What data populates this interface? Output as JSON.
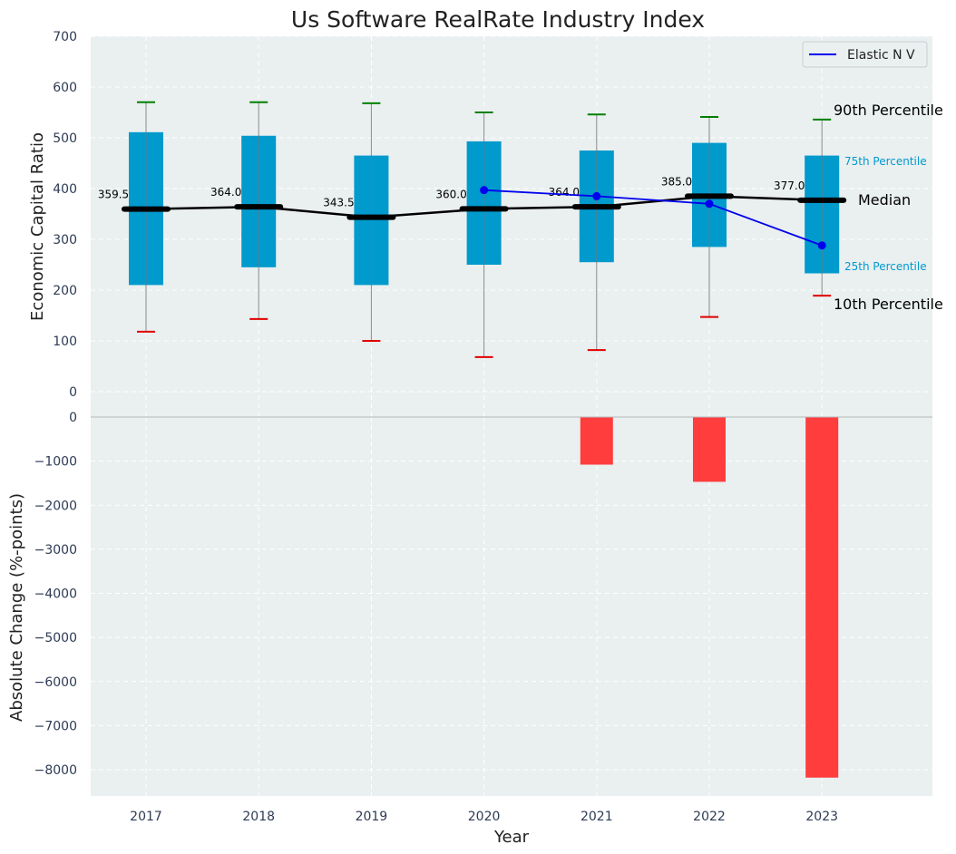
{
  "chart_data": [
    {
      "type": "box",
      "title": "Us Software RealRate Industry Index",
      "ylabel": "Economic Capital Ratio",
      "ylim": [
        0,
        700
      ],
      "yticks": [
        0,
        100,
        200,
        300,
        400,
        500,
        600,
        700
      ],
      "categories": [
        "2017",
        "2018",
        "2019",
        "2020",
        "2021",
        "2022",
        "2023"
      ],
      "p10": [
        118,
        143,
        100,
        68,
        82,
        147,
        189
      ],
      "p25": [
        210,
        245,
        210,
        250,
        255,
        285,
        233
      ],
      "median": [
        359.5,
        364.0,
        343.5,
        360.0,
        364.0,
        385.0,
        377.0
      ],
      "p75": [
        511,
        504,
        465,
        493,
        475,
        490,
        465
      ],
      "p90": [
        570,
        570,
        568,
        550,
        546,
        541,
        536
      ],
      "median_labels": [
        "359.5",
        "364.0",
        "343.5",
        "360.0",
        "364.0",
        "385.0",
        "377.0"
      ],
      "series": [
        {
          "name": "Elastic N V",
          "x": [
            "2020",
            "2021",
            "2022",
            "2023"
          ],
          "values": [
            397,
            385,
            370,
            288
          ]
        }
      ],
      "annotations": {
        "p90": "90th Percentile",
        "p75": "75th Percentile",
        "median": "Median",
        "p25": "25th Percentile",
        "p10": "10th Percentile"
      },
      "legend_position": "top-right",
      "grid": true
    },
    {
      "type": "bar",
      "xlabel": "Year",
      "ylabel": "Absolute Change (%-points)",
      "ylim": [
        -8600,
        0
      ],
      "yticks": [
        0,
        -1000,
        -2000,
        -3000,
        -4000,
        -5000,
        -6000,
        -7000,
        -8000
      ],
      "ytick_labels": [
        "0",
        "−1000",
        "−2000",
        "−3000",
        "−4000",
        "−5000",
        "−6000",
        "−7000",
        "−8000"
      ],
      "categories": [
        "2017",
        "2018",
        "2019",
        "2020",
        "2021",
        "2022",
        "2023"
      ],
      "values": [
        0,
        0,
        0,
        0,
        -1080,
        -1470,
        -8180
      ],
      "grid": true
    }
  ],
  "colors": {
    "panel_bg": "#eaeff0",
    "box_fill": "#009acd",
    "median_line": "#000000",
    "series_line": "#0000ee",
    "p90_cap": "#008000",
    "p10_cap": "#e00000",
    "bar_negative": "#ff3d3d",
    "tick_text": "#2d3b55"
  }
}
